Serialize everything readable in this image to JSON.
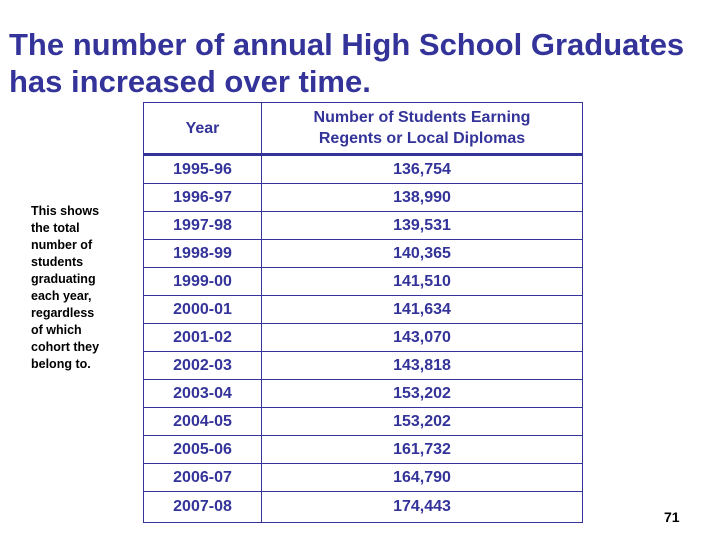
{
  "title": {
    "line1": "The number of annual High School Graduates",
    "line2": "has increased over time."
  },
  "note": "This shows\nthe total\nnumber of\nstudents\ngraduating\neach year,\nregardless\nof which\ncohort they\nbelong to.",
  "table": {
    "headers": [
      "Year",
      "Number of Students Earning\nRegents or Local Diplomas"
    ],
    "rows": [
      [
        "1995-96",
        "136,754"
      ],
      [
        "1996-97",
        "138,990"
      ],
      [
        "1997-98",
        "139,531"
      ],
      [
        "1998-99",
        "140,365"
      ],
      [
        "1999-00",
        "141,510"
      ],
      [
        "2000-01",
        "141,634"
      ],
      [
        "2001-02",
        "143,070"
      ],
      [
        "2002-03",
        "143,818"
      ],
      [
        "2003-04",
        "153,202"
      ],
      [
        "2004-05",
        "153,202"
      ],
      [
        "2005-06",
        "161,732"
      ],
      [
        "2006-07",
        "164,790"
      ],
      [
        "2007-08",
        "174,443"
      ]
    ]
  },
  "page_number": "71",
  "colors": {
    "accent": "#333399",
    "text": "#000000",
    "background": "#ffffff"
  }
}
